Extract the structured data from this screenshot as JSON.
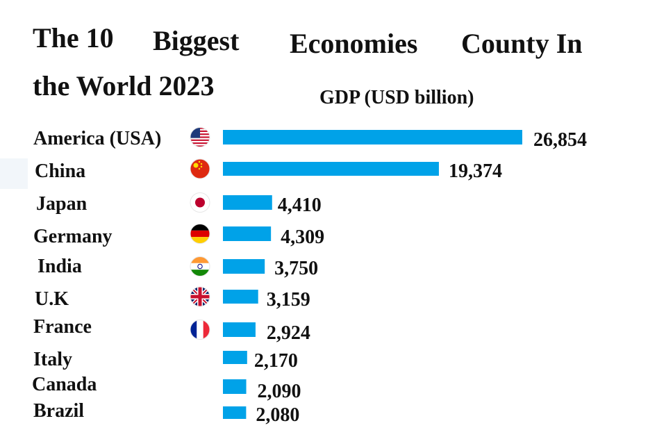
{
  "title": {
    "part1": "The 10",
    "part2": "Biggest",
    "part3": "Economies",
    "part4": "County In",
    "part5": "the World 2023"
  },
  "chart_data": {
    "type": "bar",
    "orientation": "horizontal",
    "title": "The 10 Biggest Economies County In the World 2023",
    "subtitle": "GDP (USD billion)",
    "categories": [
      "America (USA)",
      "China",
      "Japan",
      "Germany",
      "India",
      "U.K",
      "France",
      "Italy",
      "Canada",
      "Brazil"
    ],
    "values": [
      26854,
      19374,
      4410,
      4309,
      3750,
      3159,
      2924,
      2170,
      2090,
      2080
    ],
    "value_labels": [
      "26,854",
      "19,374",
      "4,410",
      "4,309",
      "3,750",
      "3,159",
      "2,924",
      "2,170",
      "2,090",
      "2,080"
    ],
    "flag_icons": [
      "usa-flag-icon",
      "china-flag-icon",
      "japan-flag-icon",
      "germany-flag-icon",
      "india-flag-icon",
      "uk-flag-icon",
      "france-flag-icon",
      null,
      null,
      null
    ],
    "bar_color": "#00a2e8",
    "grid": false,
    "legend": "none"
  }
}
